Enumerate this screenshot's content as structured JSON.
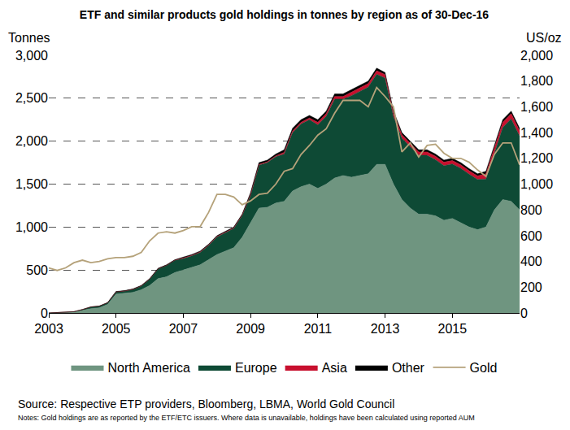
{
  "chart_data": {
    "type": "area",
    "title": "ETF and similar products gold holdings in tonnes by region as of 30-Dec-16",
    "y_label": "Tonnes",
    "y2_label": "US/oz",
    "annotations": [
      "Source: Respective ETP providers, Bloomberg, LBMA, World Gold Council",
      "Notes: Gold holdings are as reported by the ETF/ETC issuers. Where data is unavailable, holdings have been calculated using reported AUM"
    ],
    "stacked": true,
    "grid": true,
    "legend": "bottom",
    "x": [
      2003.0,
      2003.25,
      2003.5,
      2003.75,
      2004.0,
      2004.25,
      2004.5,
      2004.75,
      2005.0,
      2005.25,
      2005.5,
      2005.75,
      2006.0,
      2006.25,
      2006.5,
      2006.75,
      2007.0,
      2007.25,
      2007.5,
      2007.75,
      2008.0,
      2008.25,
      2008.5,
      2008.75,
      2009.0,
      2009.25,
      2009.5,
      2009.75,
      2010.0,
      2010.25,
      2010.5,
      2010.75,
      2011.0,
      2011.25,
      2011.5,
      2011.75,
      2012.0,
      2012.25,
      2012.5,
      2012.75,
      2013.0,
      2013.25,
      2013.5,
      2013.75,
      2014.0,
      2014.25,
      2014.5,
      2014.75,
      2015.0,
      2015.25,
      2015.5,
      2015.75,
      2016.0,
      2016.25,
      2016.5,
      2016.75,
      2017.0
    ],
    "series": [
      {
        "name": "North America",
        "color": "#6f9580",
        "type": "area",
        "values": [
          0,
          2,
          5,
          10,
          30,
          50,
          60,
          100,
          220,
          230,
          240,
          270,
          320,
          400,
          420,
          470,
          500,
          530,
          560,
          620,
          680,
          720,
          760,
          880,
          1050,
          1220,
          1230,
          1280,
          1300,
          1420,
          1470,
          1500,
          1450,
          1500,
          1570,
          1600,
          1580,
          1600,
          1620,
          1730,
          1730,
          1500,
          1320,
          1220,
          1150,
          1150,
          1130,
          1080,
          1100,
          1050,
          1000,
          970,
          1000,
          1200,
          1320,
          1300,
          1200
        ]
      },
      {
        "name": "Europe",
        "color": "#0e4a35",
        "type": "area",
        "values": [
          0,
          3,
          5,
          5,
          10,
          20,
          20,
          20,
          25,
          25,
          35,
          45,
          75,
          115,
          135,
          145,
          135,
          135,
          145,
          165,
          205,
          215,
          225,
          255,
          320,
          500,
          520,
          540,
          550,
          680,
          730,
          750,
          740,
          790,
          920,
          890,
          950,
          980,
          1010,
          1050,
          1005,
          785,
          715,
          715,
          685,
          685,
          655,
          635,
          635,
          635,
          615,
          585,
          560,
          660,
          840,
          960,
          860
        ]
      },
      {
        "name": "Asia",
        "color": "#c8102e",
        "type": "area",
        "values": [
          0,
          0,
          0,
          0,
          0,
          0,
          0,
          0,
          0,
          0,
          0,
          0,
          0,
          0,
          0,
          0,
          5,
          5,
          5,
          5,
          5,
          5,
          5,
          5,
          10,
          10,
          10,
          10,
          20,
          20,
          20,
          20,
          30,
          30,
          30,
          30,
          40,
          40,
          40,
          40,
          40,
          40,
          40,
          40,
          40,
          40,
          40,
          40,
          40,
          40,
          40,
          40,
          60,
          60,
          60,
          60,
          60
        ]
      },
      {
        "name": "Other",
        "color": "#000000",
        "type": "area",
        "values": [
          0,
          0,
          0,
          0,
          0,
          0,
          0,
          0,
          5,
          5,
          5,
          5,
          5,
          5,
          5,
          5,
          10,
          10,
          10,
          10,
          10,
          10,
          10,
          10,
          20,
          20,
          20,
          20,
          30,
          30,
          30,
          30,
          30,
          30,
          30,
          30,
          30,
          30,
          30,
          30,
          25,
          25,
          25,
          25,
          25,
          25,
          25,
          25,
          25,
          25,
          25,
          25,
          30,
          30,
          30,
          30,
          30
        ]
      },
      {
        "name": "Gold",
        "color": "#b5a27a",
        "type": "line",
        "axis": "y2",
        "values": [
          350,
          330,
          350,
          390,
          410,
          390,
          400,
          420,
          430,
          430,
          440,
          470,
          560,
          620,
          630,
          620,
          640,
          670,
          670,
          780,
          920,
          920,
          900,
          840,
          870,
          920,
          930,
          1000,
          1100,
          1120,
          1230,
          1300,
          1380,
          1430,
          1550,
          1650,
          1650,
          1650,
          1600,
          1750,
          1680,
          1600,
          1250,
          1320,
          1210,
          1300,
          1310,
          1240,
          1200,
          1200,
          1170,
          1110,
          1060,
          1230,
          1320,
          1320,
          1150
        ]
      }
    ],
    "xlim": [
      2003,
      2017
    ],
    "xticks": [
      2003,
      2005,
      2007,
      2009,
      2011,
      2013,
      2015
    ],
    "ylim": [
      0,
      3000
    ],
    "yticks": [
      0,
      500,
      {
        "value": 1000,
        "label": "1,000"
      },
      {
        "value": 1500,
        "label": "1,500"
      },
      {
        "value": 2000,
        "label": "2,000"
      },
      {
        "value": 2500,
        "label": "2,500"
      },
      {
        "value": 3000,
        "label": "3,000"
      }
    ],
    "y2lim": [
      0,
      2000
    ],
    "y2ticks": [
      0,
      200,
      400,
      600,
      800,
      {
        "value": 1000,
        "label": "1,000"
      },
      {
        "value": 1200,
        "label": "1,200"
      },
      {
        "value": 1400,
        "label": "1,400"
      },
      {
        "value": 1600,
        "label": "1,600"
      },
      {
        "value": 1800,
        "label": "1,800"
      },
      {
        "value": 2000,
        "label": "2,000"
      }
    ]
  }
}
